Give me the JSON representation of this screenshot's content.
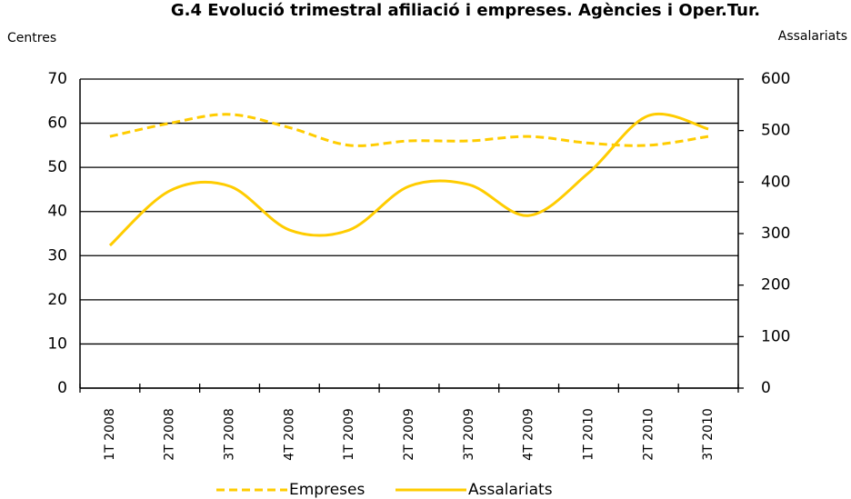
{
  "chart_data": {
    "type": "line",
    "title": "G.4 Evolució trimestral afiliació i empreses. Agències i Oper.Tur.",
    "ylabel": "Centres",
    "y2label": "Assalariats",
    "categories": [
      "1T 2008",
      "2T 2008",
      "3T 2008",
      "4T 2008",
      "1T 2009",
      "2T 2009",
      "3T 2009",
      "4T 2009",
      "1T 2010",
      "2T 2010",
      "3T 2010"
    ],
    "series": [
      {
        "name": "Empreses",
        "color": "#ffcc00",
        "dash": true,
        "values": [
          57,
          60,
          62,
          59,
          55,
          56,
          56,
          57,
          55.5,
          55,
          57
        ]
      },
      {
        "name": "Assalariats",
        "color": "#ffcc00",
        "axis": "y2",
        "values": [
          277,
          383,
          392,
          307,
          307,
          392,
          395,
          335,
          418,
          529,
          503
        ]
      }
    ],
    "ylim": [
      0,
      70
    ],
    "yticks": [
      0,
      10,
      20,
      30,
      40,
      50,
      60,
      70
    ],
    "y2lim": [
      0,
      600
    ],
    "y2ticks": [
      0,
      100,
      200,
      300,
      400,
      500,
      600
    ],
    "grid": true,
    "legend": "bottom"
  }
}
